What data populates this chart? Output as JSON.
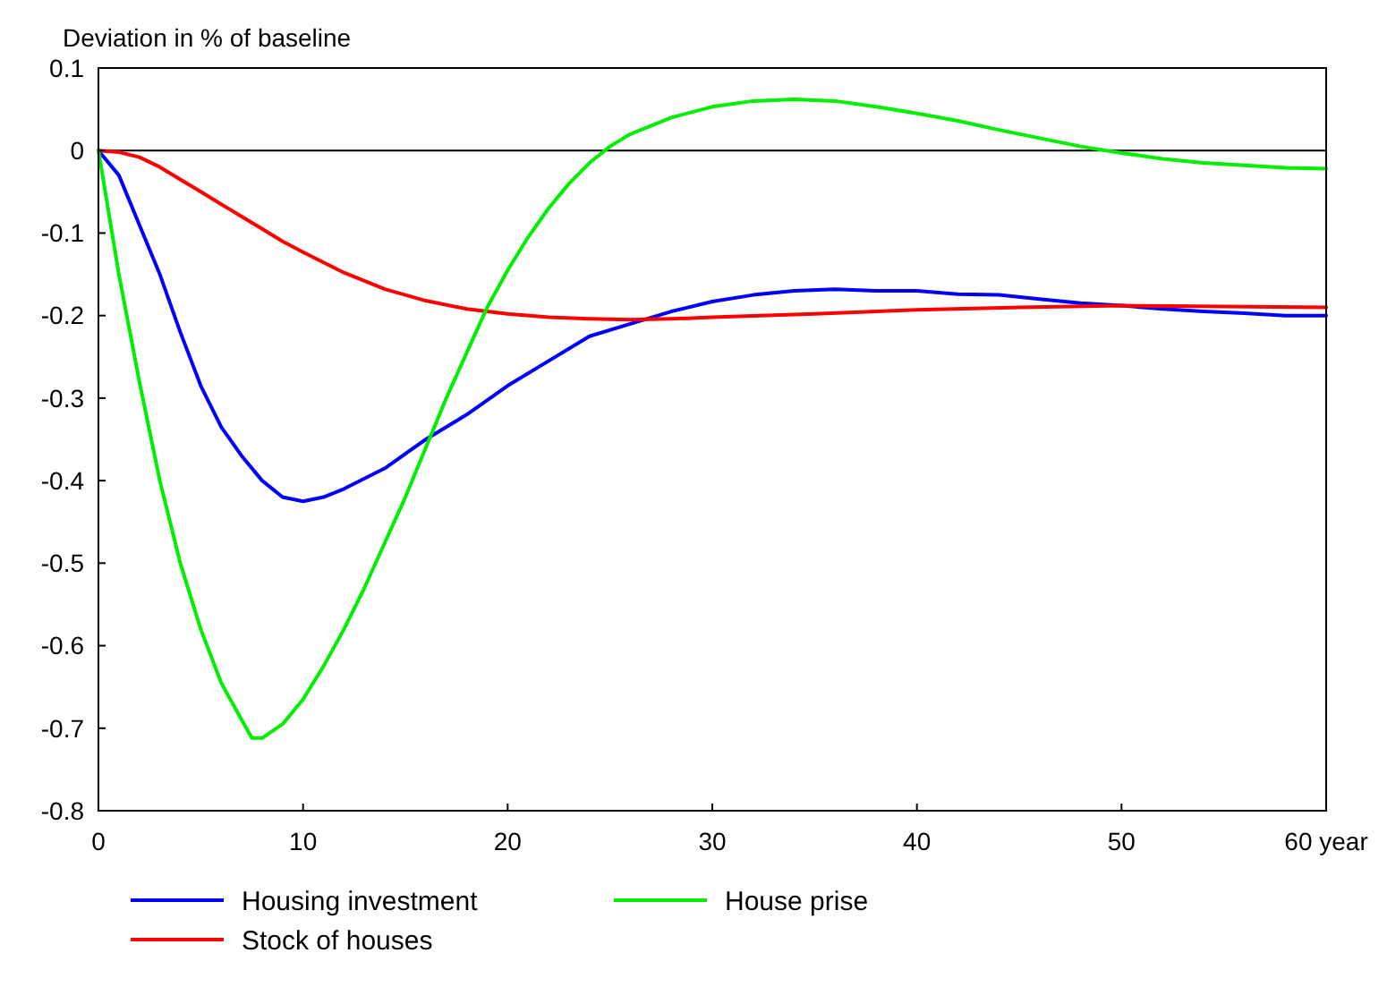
{
  "chart_data": {
    "type": "line",
    "ylabel": "Deviation in % of baseline",
    "xlim": [
      0,
      60
    ],
    "xticks": [
      0,
      10,
      20,
      30,
      40,
      50,
      {
        "value": 60,
        "label": "60 year"
      }
    ],
    "ylim": [
      -0.8,
      0.1
    ],
    "yticks": [
      0.1,
      0,
      -0.1,
      -0.2,
      -0.3,
      -0.4,
      -0.5,
      -0.6,
      -0.7,
      -0.8
    ],
    "grid": false,
    "legend": "bottom",
    "marker": "none",
    "line_style": "solid",
    "ref_lines": [
      {
        "axis": "y",
        "value": 0,
        "color": "#000000"
      }
    ],
    "series": [
      {
        "name": "Housing investment",
        "color": "#0000ff",
        "x": [
          0,
          1,
          2,
          3,
          4,
          5,
          6,
          7,
          8,
          9,
          10,
          11,
          12,
          14,
          16,
          18,
          20,
          22,
          24,
          26,
          28,
          30,
          32,
          34,
          36,
          38,
          40,
          42,
          44,
          46,
          48,
          50,
          52,
          54,
          56,
          58,
          60
        ],
        "values": [
          0,
          -0.03,
          -0.09,
          -0.15,
          -0.22,
          -0.285,
          -0.335,
          -0.37,
          -0.4,
          -0.42,
          -0.425,
          -0.42,
          -0.41,
          -0.385,
          -0.35,
          -0.32,
          -0.285,
          -0.255,
          -0.225,
          -0.21,
          -0.195,
          -0.183,
          -0.175,
          -0.17,
          -0.168,
          -0.17,
          -0.17,
          -0.174,
          -0.175,
          -0.18,
          -0.185,
          -0.188,
          -0.192,
          -0.195,
          -0.197,
          -0.2,
          -0.2
        ]
      },
      {
        "name": "Stock of houses",
        "color": "#ff0000",
        "x": [
          0,
          1,
          2,
          3,
          4,
          5,
          6,
          7,
          8,
          9,
          10,
          12,
          14,
          16,
          18,
          20,
          22,
          24,
          26,
          28,
          30,
          35,
          40,
          45,
          50,
          55,
          60
        ],
        "values": [
          0,
          -0.002,
          -0.008,
          -0.02,
          -0.035,
          -0.05,
          -0.065,
          -0.08,
          -0.095,
          -0.11,
          -0.123,
          -0.148,
          -0.168,
          -0.182,
          -0.192,
          -0.198,
          -0.202,
          -0.204,
          -0.205,
          -0.204,
          -0.202,
          -0.198,
          -0.193,
          -0.19,
          -0.188,
          -0.189,
          -0.19
        ]
      },
      {
        "name": "House prise",
        "color": "#00ee00",
        "x": [
          0,
          1,
          2,
          3,
          4,
          5,
          6,
          7,
          7.5,
          8,
          9,
          10,
          11,
          12,
          13,
          14,
          15,
          16,
          17,
          18,
          19,
          20,
          21,
          22,
          23,
          24,
          25,
          26,
          28,
          30,
          32,
          34,
          36,
          38,
          40,
          42,
          44,
          46,
          48,
          50,
          52,
          54,
          56,
          58,
          60
        ],
        "values": [
          0,
          -0.15,
          -0.28,
          -0.4,
          -0.5,
          -0.58,
          -0.645,
          -0.69,
          -0.712,
          -0.712,
          -0.695,
          -0.665,
          -0.625,
          -0.58,
          -0.53,
          -0.475,
          -0.42,
          -0.36,
          -0.3,
          -0.245,
          -0.19,
          -0.145,
          -0.105,
          -0.07,
          -0.04,
          -0.015,
          0.005,
          0.02,
          0.04,
          0.053,
          0.06,
          0.062,
          0.06,
          0.053,
          0.045,
          0.036,
          0.025,
          0.015,
          0.005,
          -0.003,
          -0.01,
          -0.015,
          -0.018,
          -0.021,
          -0.022
        ]
      }
    ]
  }
}
